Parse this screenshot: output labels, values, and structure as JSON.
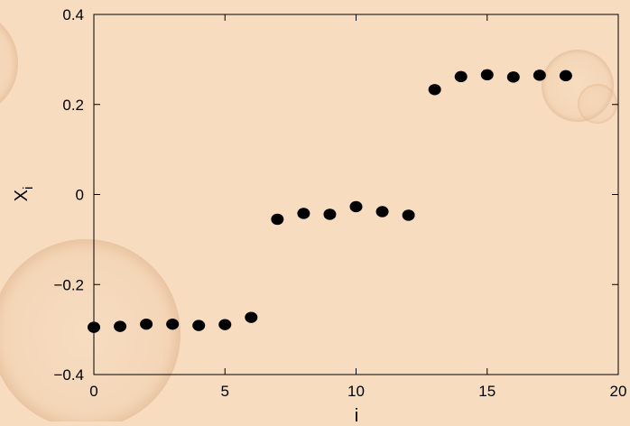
{
  "chart_data": {
    "type": "scatter",
    "title": "",
    "xlabel": "i",
    "ylabel": "X",
    "ylabel_subscript": "i",
    "xlim": [
      0,
      20
    ],
    "ylim": [
      -0.4,
      0.4
    ],
    "xticks": [
      0,
      5,
      10,
      15,
      20
    ],
    "xtick_labels": [
      "0",
      "5",
      "10",
      "15",
      "20"
    ],
    "yticks": [
      -0.4,
      -0.2,
      0,
      0.2,
      0.4
    ],
    "ytick_labels": [
      "−0.4",
      "−0.2",
      "0",
      "0.2",
      "0.4"
    ],
    "grid": false,
    "marker_color": "#000000",
    "background_color": "#f7dcc0",
    "series": [
      {
        "x": [
          0,
          1,
          2,
          3,
          4,
          5,
          6,
          7,
          8,
          9,
          10,
          11,
          12,
          13,
          14,
          15,
          16,
          17,
          18
        ],
        "y": [
          -0.295,
          -0.293,
          -0.288,
          -0.288,
          -0.291,
          -0.289,
          -0.273,
          -0.055,
          -0.042,
          -0.044,
          -0.027,
          -0.038,
          -0.046,
          0.233,
          0.262,
          0.266,
          0.261,
          0.265,
          0.264
        ]
      }
    ]
  }
}
